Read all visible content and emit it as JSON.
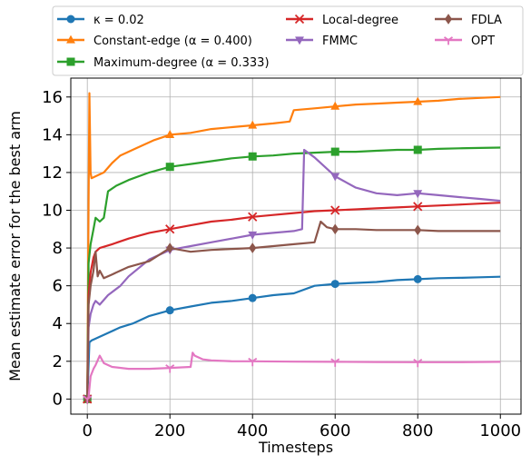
{
  "chart_data": {
    "type": "line",
    "xlabel": "Timesteps",
    "ylabel": "Mean estimate error for the best arm",
    "xlim": [
      -40,
      1050
    ],
    "ylim": [
      -0.8,
      17
    ],
    "xticks": [
      "0",
      "200",
      "400",
      "600",
      "800",
      "1000"
    ],
    "yticks": [
      "0",
      "2",
      "4",
      "6",
      "8",
      "10",
      "12",
      "14",
      "16"
    ],
    "grid": true,
    "legend_position": "top",
    "series": [
      {
        "name": "κ = 0.02",
        "color": "#1f77b4",
        "marker": "circle",
        "x": [
          0,
          5,
          10,
          20,
          30,
          50,
          80,
          110,
          150,
          200,
          250,
          300,
          350,
          400,
          450,
          500,
          550,
          600,
          650,
          700,
          750,
          800,
          850,
          900,
          950,
          1000
        ],
        "y": [
          0,
          3.0,
          3.1,
          3.2,
          3.3,
          3.5,
          3.8,
          4.0,
          4.4,
          4.7,
          4.9,
          5.1,
          5.2,
          5.35,
          5.5,
          5.6,
          6.0,
          6.1,
          6.15,
          6.2,
          6.3,
          6.35,
          6.4,
          6.42,
          6.45,
          6.48
        ]
      },
      {
        "name": "Constant-edge (α = 0.400)",
        "color": "#ff7f0e",
        "marker": "triangle",
        "x": [
          0,
          3,
          5,
          8,
          10,
          20,
          40,
          60,
          80,
          120,
          160,
          200,
          250,
          300,
          350,
          400,
          450,
          490,
          500,
          550,
          600,
          650,
          700,
          750,
          800,
          850,
          900,
          950,
          1000
        ],
        "y": [
          0,
          10.5,
          16.2,
          12.0,
          11.7,
          11.8,
          12.0,
          12.5,
          12.9,
          13.3,
          13.7,
          14.0,
          14.1,
          14.3,
          14.4,
          14.5,
          14.6,
          14.7,
          15.3,
          15.4,
          15.5,
          15.6,
          15.65,
          15.7,
          15.75,
          15.8,
          15.9,
          15.95,
          16.0
        ]
      },
      {
        "name": "Maximum-degree (α = 0.333)",
        "color": "#2ca02c",
        "marker": "square",
        "x": [
          0,
          3,
          8,
          15,
          20,
          30,
          40,
          45,
          50,
          70,
          100,
          150,
          200,
          250,
          300,
          350,
          400,
          450,
          500,
          550,
          600,
          650,
          700,
          750,
          800,
          850,
          900,
          950,
          1000
        ],
        "y": [
          0,
          7.2,
          8.2,
          9.0,
          9.6,
          9.4,
          9.6,
          10.3,
          11.0,
          11.3,
          11.6,
          12.0,
          12.3,
          12.45,
          12.6,
          12.75,
          12.85,
          12.9,
          13.0,
          13.05,
          13.1,
          13.1,
          13.15,
          13.2,
          13.2,
          13.25,
          13.28,
          13.3,
          13.32
        ]
      },
      {
        "name": "Local-degree",
        "color": "#d62728",
        "marker": "x",
        "x": [
          0,
          3,
          8,
          15,
          20,
          30,
          60,
          100,
          150,
          200,
          250,
          300,
          350,
          400,
          450,
          500,
          550,
          600,
          650,
          700,
          750,
          800,
          850,
          900,
          950,
          1000
        ],
        "y": [
          0,
          5.5,
          6.7,
          7.5,
          7.8,
          8.0,
          8.2,
          8.5,
          8.8,
          9.0,
          9.2,
          9.4,
          9.5,
          9.65,
          9.75,
          9.85,
          9.95,
          10.0,
          10.05,
          10.1,
          10.15,
          10.2,
          10.25,
          10.3,
          10.35,
          10.4
        ]
      },
      {
        "name": "FMMC",
        "color": "#9467bd",
        "marker": "triangle-down",
        "x": [
          0,
          3,
          8,
          15,
          20,
          30,
          50,
          80,
          100,
          150,
          200,
          250,
          300,
          350,
          400,
          450,
          500,
          520,
          525,
          550,
          600,
          650,
          700,
          750,
          800,
          850,
          900,
          950,
          1000
        ],
        "y": [
          0,
          3.8,
          4.5,
          5.0,
          5.2,
          5.0,
          5.5,
          6.0,
          6.5,
          7.4,
          7.9,
          8.1,
          8.3,
          8.5,
          8.7,
          8.8,
          8.9,
          9.0,
          13.2,
          12.8,
          11.8,
          11.2,
          10.9,
          10.8,
          10.9,
          10.8,
          10.7,
          10.6,
          10.5
        ]
      },
      {
        "name": "FDLA",
        "color": "#8c564b",
        "marker": "diamond",
        "x": [
          0,
          3,
          8,
          15,
          20,
          25,
          30,
          40,
          60,
          80,
          100,
          150,
          200,
          250,
          300,
          350,
          400,
          450,
          500,
          550,
          565,
          580,
          600,
          650,
          700,
          750,
          800,
          850,
          900,
          950,
          1000
        ],
        "y": [
          0,
          5.0,
          6.0,
          6.8,
          7.8,
          6.5,
          6.8,
          6.4,
          6.6,
          6.8,
          7.0,
          7.3,
          8.0,
          7.8,
          7.9,
          7.95,
          8.0,
          8.1,
          8.2,
          8.3,
          9.4,
          9.1,
          9.0,
          9.0,
          8.95,
          8.95,
          8.95,
          8.9,
          8.9,
          8.9,
          8.9
        ]
      },
      {
        "name": "OPT",
        "color": "#e377c2",
        "marker": "tri-down",
        "x": [
          0,
          3,
          8,
          15,
          20,
          30,
          40,
          60,
          100,
          150,
          200,
          250,
          255,
          260,
          280,
          300,
          350,
          400,
          500,
          600,
          700,
          800,
          900,
          1000
        ],
        "y": [
          0,
          0.1,
          1.2,
          1.6,
          1.8,
          2.3,
          1.9,
          1.7,
          1.6,
          1.6,
          1.65,
          1.7,
          2.45,
          2.3,
          2.1,
          2.05,
          2.0,
          2.0,
          1.98,
          1.97,
          1.96,
          1.95,
          1.95,
          1.97
        ]
      }
    ]
  }
}
